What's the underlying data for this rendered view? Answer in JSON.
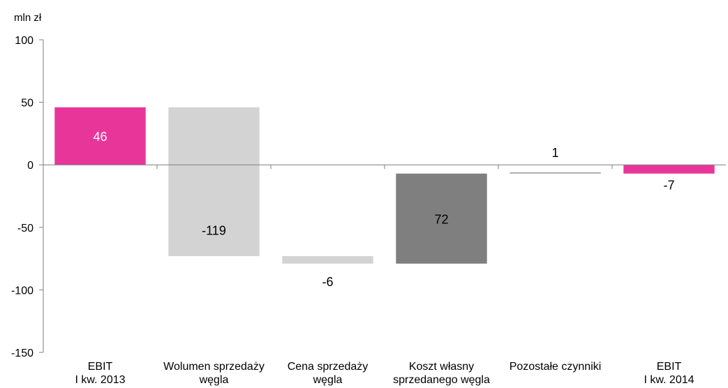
{
  "chart_data": {
    "type": "bar",
    "subtype": "waterfall",
    "unit_label": "mln zł",
    "title": "",
    "xlabel": "",
    "ylabel": "",
    "ylim": [
      -150,
      100
    ],
    "yticks": [
      100,
      50,
      0,
      -50,
      -100,
      -150
    ],
    "ytick_labels": [
      "100",
      "50",
      "0",
      "-50",
      "-100",
      "-150"
    ],
    "grid": false,
    "legend": "none",
    "categories": [
      [
        "EBIT",
        "I kw. 2013"
      ],
      [
        "Wolumen sprzedaży",
        "węgla"
      ],
      [
        "Cena sprzedaży",
        "węgla"
      ],
      [
        "Koszt własny",
        "sprzedanego węgla"
      ],
      [
        "Pozostałe czynniki"
      ],
      [
        "EBIT",
        "I kw. 2014"
      ]
    ],
    "bars": [
      {
        "start": 0,
        "end": 46,
        "label": "46",
        "color": "#e8359a",
        "kind": "total"
      },
      {
        "start": 46,
        "end": -73,
        "label": "-119",
        "color": "#d3d3d3",
        "kind": "decrease"
      },
      {
        "start": -73,
        "end": -79,
        "label": "-6",
        "color": "#d3d3d3",
        "kind": "decrease"
      },
      {
        "start": -79,
        "end": -7,
        "label": "72",
        "color": "#7f7f7f",
        "kind": "increase"
      },
      {
        "start": -7,
        "end": -6,
        "label": "1",
        "color": "#a6a6a6",
        "kind": "increase"
      },
      {
        "start": 0,
        "end": -7,
        "label": "-7",
        "color": "#e8359a",
        "kind": "total"
      }
    ],
    "colors": {
      "axis": "#7f7f7f",
      "text": "#000000"
    }
  }
}
